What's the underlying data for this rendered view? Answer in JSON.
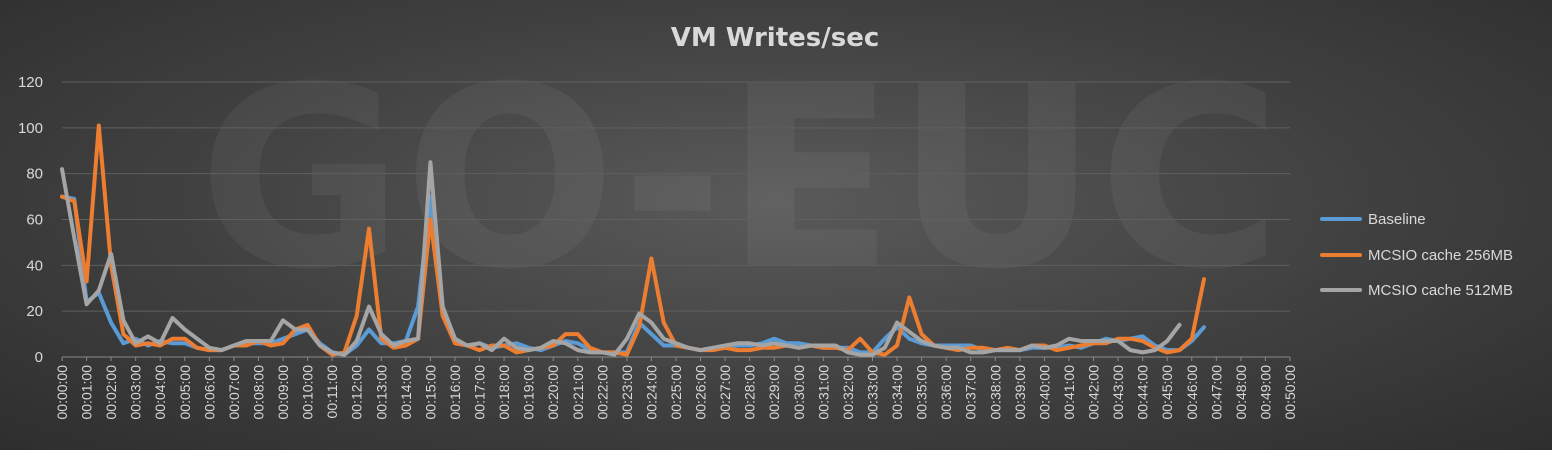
{
  "chart_data": {
    "type": "line",
    "title": "VM Writes/sec",
    "watermark": "GO-EUC",
    "ylim": [
      0,
      120
    ],
    "yticks": [
      "0",
      "20",
      "40",
      "60",
      "80",
      "100",
      "120"
    ],
    "grid": true,
    "legend_position": "right",
    "x_tick_labels": [
      "00:00:00",
      "00:01:00",
      "00:02:00",
      "00:03:00",
      "00:04:00",
      "00:05:00",
      "00:06:00",
      "00:07:00",
      "00:08:00",
      "00:09:00",
      "00:10:00",
      "00:11:00",
      "00:12:00",
      "00:13:00",
      "00:14:00",
      "00:15:00",
      "00:16:00",
      "00:17:00",
      "00:18:00",
      "00:19:00",
      "00:20:00",
      "00:21:00",
      "00:22:00",
      "00:23:00",
      "00:24:00",
      "00:25:00",
      "00:26:00",
      "00:27:00",
      "00:28:00",
      "00:29:00",
      "00:30:00",
      "00:31:00",
      "00:32:00",
      "00:33:00",
      "00:34:00",
      "00:35:00",
      "00:36:00",
      "00:37:00",
      "00:38:00",
      "00:39:00",
      "00:40:00",
      "00:41:00",
      "00:42:00",
      "00:43:00",
      "00:44:00",
      "00:45:00",
      "00:46:00",
      "00:47:00",
      "00:48:00",
      "00:49:00",
      "00:50:00"
    ],
    "point_interval_seconds": 30,
    "series": [
      {
        "name": "Baseline",
        "color": "#5b9bd5",
        "values": [
          70,
          69,
          24,
          28,
          15,
          6,
          8,
          5,
          7,
          6,
          6,
          4,
          3,
          3,
          5,
          6,
          6,
          6,
          8,
          10,
          12,
          6,
          2,
          1,
          5,
          12,
          6,
          6,
          7,
          22,
          70,
          18,
          7,
          5,
          6,
          4,
          5,
          6,
          4,
          3,
          5,
          7,
          6,
          3,
          2,
          2,
          2,
          15,
          10,
          5,
          5,
          4,
          3,
          4,
          4,
          5,
          5,
          6,
          8,
          6,
          6,
          5,
          4,
          4,
          4,
          2,
          2,
          8,
          13,
          8,
          6,
          5,
          5,
          5,
          5,
          3,
          3,
          3,
          3,
          4,
          4,
          4,
          5,
          4,
          6,
          8,
          7,
          8,
          9,
          5,
          3,
          3,
          7,
          13
        ]
      },
      {
        "name": "MCSIO cache 256MB",
        "color": "#ed7d31",
        "values": [
          70,
          68,
          33,
          101,
          40,
          10,
          5,
          6,
          5,
          8,
          8,
          4,
          3,
          3,
          5,
          5,
          7,
          5,
          6,
          12,
          14,
          5,
          1,
          2,
          18,
          56,
          8,
          4,
          5,
          8,
          60,
          18,
          6,
          5,
          3,
          5,
          5,
          2,
          3,
          4,
          5,
          10,
          10,
          4,
          2,
          2,
          1,
          13,
          43,
          15,
          5,
          4,
          3,
          3,
          4,
          3,
          3,
          4,
          4,
          5,
          4,
          5,
          4,
          4,
          3,
          8,
          2,
          1,
          5,
          26,
          10,
          5,
          4,
          3,
          4,
          4,
          3,
          4,
          3,
          5,
          5,
          3,
          4,
          5,
          6,
          6,
          8,
          8,
          7,
          4,
          2,
          3,
          8,
          34
        ]
      },
      {
        "name": "MCSIO cache 512MB",
        "color": "#a5a5a5",
        "values": [
          82,
          52,
          23,
          29,
          45,
          16,
          6,
          9,
          6,
          17,
          12,
          8,
          4,
          3,
          5,
          7,
          7,
          7,
          16,
          12,
          12,
          5,
          2,
          1,
          7,
          22,
          10,
          5,
          7,
          8,
          85,
          22,
          8,
          5,
          6,
          3,
          8,
          4,
          3,
          4,
          7,
          6,
          3,
          2,
          2,
          1,
          8,
          19,
          15,
          8,
          6,
          4,
          3,
          4,
          5,
          6,
          6,
          5,
          6,
          5,
          4,
          5,
          5,
          5,
          2,
          1,
          1,
          4,
          15,
          11,
          7,
          5,
          4,
          4,
          2,
          2,
          3,
          3,
          3,
          5,
          4,
          5,
          8,
          7,
          7,
          7,
          7,
          3,
          2,
          3,
          7,
          14
        ]
      }
    ]
  }
}
